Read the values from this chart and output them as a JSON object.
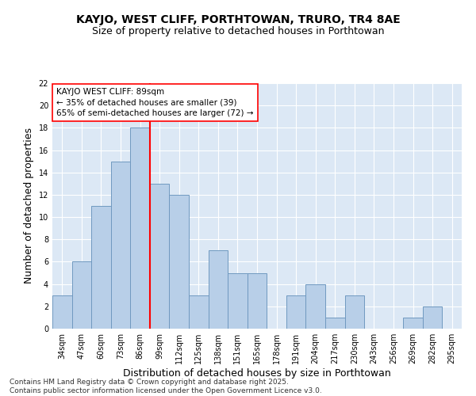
{
  "title": "KAYJO, WEST CLIFF, PORTHTOWAN, TRURO, TR4 8AE",
  "subtitle": "Size of property relative to detached houses in Porthtowan",
  "xlabel": "Distribution of detached houses by size in Porthtowan",
  "ylabel": "Number of detached properties",
  "categories": [
    "34sqm",
    "47sqm",
    "60sqm",
    "73sqm",
    "86sqm",
    "99sqm",
    "112sqm",
    "125sqm",
    "138sqm",
    "151sqm",
    "165sqm",
    "178sqm",
    "191sqm",
    "204sqm",
    "217sqm",
    "230sqm",
    "243sqm",
    "256sqm",
    "269sqm",
    "282sqm",
    "295sqm"
  ],
  "values": [
    3,
    6,
    11,
    15,
    18,
    13,
    12,
    3,
    7,
    5,
    5,
    0,
    3,
    4,
    1,
    3,
    0,
    0,
    1,
    2,
    0
  ],
  "bar_color": "#b8cfe8",
  "bar_edge_color": "#7099c0",
  "vline_x": 4.5,
  "vline_color": "red",
  "annotation_text": "KAYJO WEST CLIFF: 89sqm\n← 35% of detached houses are smaller (39)\n65% of semi-detached houses are larger (72) →",
  "annotation_box_color": "white",
  "annotation_box_edge_color": "red",
  "ylim": [
    0,
    22
  ],
  "yticks": [
    0,
    2,
    4,
    6,
    8,
    10,
    12,
    14,
    16,
    18,
    20,
    22
  ],
  "background_color": "#dce8f5",
  "grid_color": "white",
  "footer_line1": "Contains HM Land Registry data © Crown copyright and database right 2025.",
  "footer_line2": "Contains public sector information licensed under the Open Government Licence v3.0.",
  "title_fontsize": 10,
  "subtitle_fontsize": 9,
  "axis_label_fontsize": 9,
  "tick_fontsize": 7,
  "annotation_fontsize": 7.5,
  "footer_fontsize": 6.5
}
